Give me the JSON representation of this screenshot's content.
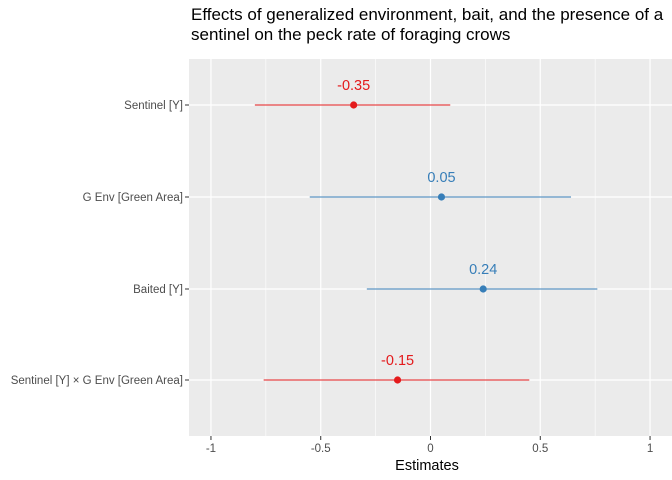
{
  "chart_data": {
    "type": "scatter",
    "title": "Effects of generalized environment, bait, and the presence of a\nsentinel on the peck rate of foraging crows",
    "xlabel": "Estimates",
    "ylabel": "",
    "xlim": [
      -1.1,
      1.1
    ],
    "x_ticks": [
      "-1",
      "-0.5",
      "0",
      "0.5",
      "1"
    ],
    "x_tick_values": [
      -1,
      -0.5,
      0,
      0.5,
      1
    ],
    "grid": true,
    "terms": [
      {
        "label": "Sentinel [Y]",
        "estimate": -0.35,
        "lower": -0.8,
        "upper": 0.09,
        "value_label": "-0.35",
        "color": "#e41a1c"
      },
      {
        "label": "G Env [Green Area]",
        "estimate": 0.05,
        "lower": -0.55,
        "upper": 0.64,
        "value_label": "0.05",
        "color": "#377eb8"
      },
      {
        "label": "Baited [Y]",
        "estimate": 0.24,
        "lower": -0.29,
        "upper": 0.76,
        "value_label": "0.24",
        "color": "#377eb8"
      },
      {
        "label": "Sentinel [Y] × G Env [Green Area]",
        "estimate": -0.15,
        "lower": -0.76,
        "upper": 0.45,
        "value_label": "-0.15",
        "color": "#e41a1c"
      }
    ],
    "colors": {
      "panel_bg": "#ebebeb",
      "grid": "#ffffff",
      "negative": "#e41a1c",
      "positive": "#377eb8"
    }
  }
}
